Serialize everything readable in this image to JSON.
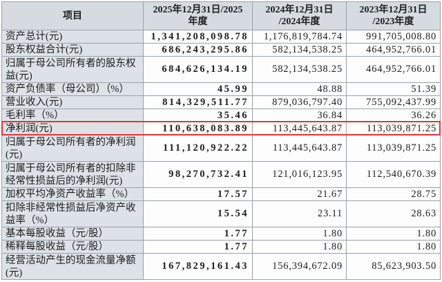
{
  "table": {
    "headers": {
      "item": "项目",
      "y2025": "2025年12月31日/2025\n年度",
      "y2024": "2024年12月31日\n/2024年度",
      "y2023": "2023年12月31日\n/2023年度"
    },
    "rows": [
      {
        "label": "资产总计(元)",
        "v2025": "1,341,208,098.78",
        "v2024": "1,176,819,784.74",
        "v2023": "991,705,008.80"
      },
      {
        "label": "股东权益合计(元)",
        "v2025": "686,243,295.86",
        "v2024": "582,134,538.25",
        "v2023": "464,952,766.01"
      },
      {
        "label": "归属于母公司所有者的股东权益(元)",
        "v2025": "684,626,134.19",
        "v2024": "582,134,538.25",
        "v2023": "464,952,766.01"
      },
      {
        "label": "资产负债率（母公司）（%）",
        "v2025": "45.99",
        "v2024": "48.88",
        "v2023": "51.39"
      },
      {
        "label": "营业收入(元)",
        "v2025": "814,329,511.77",
        "v2024": "879,036,797.40",
        "v2023": "755,092,437.99"
      },
      {
        "label": "毛利率（%）",
        "v2025": "35.46",
        "v2024": "36.84",
        "v2023": "36.26"
      },
      {
        "label": "净利润(元)",
        "v2025": "110,638,083.89",
        "v2024": "113,445,643.87",
        "v2023": "113,039,871.25"
      },
      {
        "label": "归属于母公司所有者的净利润(元)",
        "v2025": "111,120,922.22",
        "v2024": "113,445,643.87",
        "v2023": "113,039,871.25"
      },
      {
        "label": "归属于母公司所有者的扣除非经常性损益后的净利润(元)",
        "v2025": "98,270,732.41",
        "v2024": "121,016,123.95",
        "v2023": "112,540,670.39"
      },
      {
        "label": "加权平均净资产收益率（%）",
        "v2025": "17.57",
        "v2024": "21.67",
        "v2023": "28.75"
      },
      {
        "label": "扣除非经常性损益后净资产收益率（%）",
        "v2025": "15.54",
        "v2024": "23.11",
        "v2023": "28.63"
      },
      {
        "label": "基本每股收益（元/股）",
        "v2025": "1.77",
        "v2024": "1.80",
        "v2023": "1.80"
      },
      {
        "label": "稀释每股收益（元/股）",
        "v2025": "1.77",
        "v2024": "1.80",
        "v2023": "1.80"
      },
      {
        "label": "经营活动产生的现金流量净额(元)",
        "v2025": "167,829,161.43",
        "v2024": "156,394,672.09",
        "v2023": "85,623,903.50"
      }
    ]
  },
  "colors": {
    "highlight_border": "#e5323a",
    "header_background": "#d6dbe2",
    "label_background": "#dde2e8",
    "grid_line": "#9aa1a9"
  }
}
